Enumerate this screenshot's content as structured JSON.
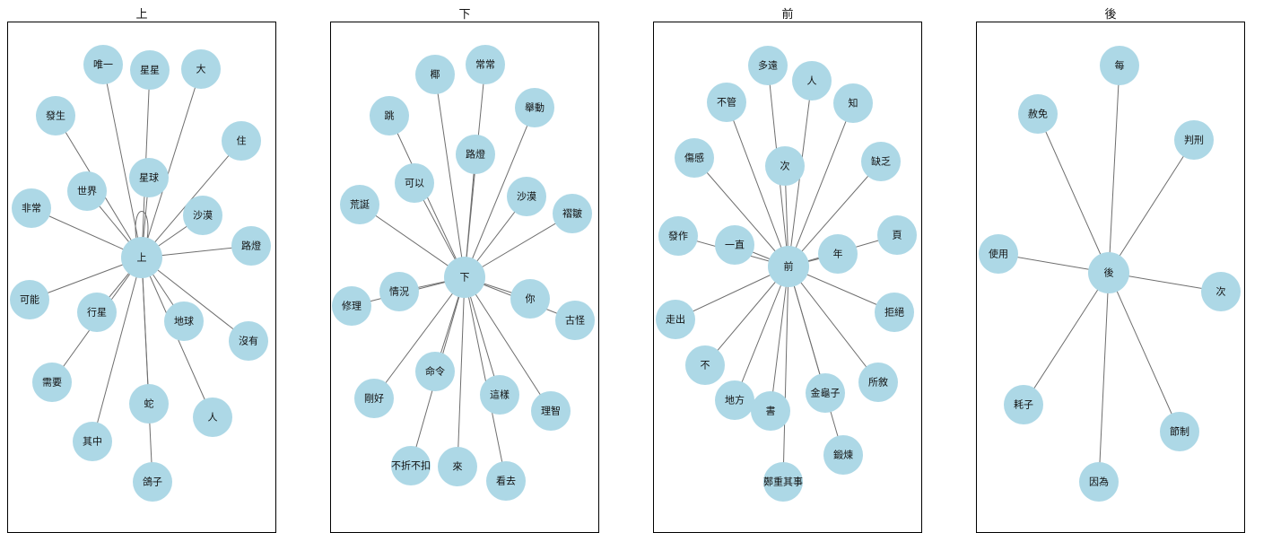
{
  "colors": {
    "node": "#add8e6",
    "edge": "#6e6e6e",
    "frame": "#000000"
  },
  "panels": [
    {
      "title": "上",
      "center": "上",
      "neighbors": [
        "唯一",
        "星星",
        "大",
        "發生",
        "住",
        "星球",
        "世界",
        "非常",
        "沙漠",
        "路燈",
        "可能",
        "行星",
        "地球",
        "沒有",
        "需要",
        "蛇",
        "人",
        "其中",
        "鴿子"
      ],
      "self_loop": true
    },
    {
      "title": "下",
      "center": "下",
      "neighbors": [
        "椰",
        "常常",
        "跳",
        "舉動",
        "路燈",
        "可以",
        "沙漠",
        "荒誕",
        "褶皺",
        "修理",
        "情況",
        "你",
        "古怪",
        "剛好",
        "命令",
        "這樣",
        "理智",
        "不折不扣",
        "來",
        "看去"
      ],
      "self_loop": false
    },
    {
      "title": "前",
      "center": "前",
      "neighbors": [
        "多遠",
        "人",
        "不管",
        "知",
        "傷感",
        "次",
        "缺乏",
        "發作",
        "一直",
        "頁",
        "年",
        "走出",
        "拒絕",
        "不",
        "金龜子",
        "所敘",
        "地方",
        "書",
        "鍛煉",
        "鄭重其事"
      ],
      "self_loop": false
    },
    {
      "title": "後",
      "center": "後",
      "neighbors": [
        "每",
        "赦免",
        "判刑",
        "使用",
        "次",
        "耗子",
        "節制",
        "因為"
      ],
      "self_loop": false
    }
  ],
  "chart_data": [
    {
      "type": "network",
      "title": "上",
      "center": "上",
      "edges": [
        [
          "上",
          "唯一"
        ],
        [
          "上",
          "星星"
        ],
        [
          "上",
          "大"
        ],
        [
          "上",
          "發生"
        ],
        [
          "上",
          "住"
        ],
        [
          "上",
          "星球"
        ],
        [
          "上",
          "世界"
        ],
        [
          "上",
          "非常"
        ],
        [
          "上",
          "沙漠"
        ],
        [
          "上",
          "路燈"
        ],
        [
          "上",
          "可能"
        ],
        [
          "上",
          "行星"
        ],
        [
          "上",
          "地球"
        ],
        [
          "上",
          "沒有"
        ],
        [
          "上",
          "需要"
        ],
        [
          "上",
          "蛇"
        ],
        [
          "上",
          "人"
        ],
        [
          "上",
          "其中"
        ],
        [
          "上",
          "鴿子"
        ],
        [
          "上",
          "上"
        ]
      ]
    },
    {
      "type": "network",
      "title": "下",
      "center": "下",
      "edges": [
        [
          "下",
          "椰"
        ],
        [
          "下",
          "常常"
        ],
        [
          "下",
          "跳"
        ],
        [
          "下",
          "舉動"
        ],
        [
          "下",
          "路燈"
        ],
        [
          "下",
          "可以"
        ],
        [
          "下",
          "沙漠"
        ],
        [
          "下",
          "荒誕"
        ],
        [
          "下",
          "褶皺"
        ],
        [
          "下",
          "修理"
        ],
        [
          "下",
          "情況"
        ],
        [
          "下",
          "你"
        ],
        [
          "下",
          "古怪"
        ],
        [
          "下",
          "剛好"
        ],
        [
          "下",
          "命令"
        ],
        [
          "下",
          "這樣"
        ],
        [
          "下",
          "理智"
        ],
        [
          "下",
          "不折不扣"
        ],
        [
          "下",
          "來"
        ],
        [
          "下",
          "看去"
        ]
      ]
    },
    {
      "type": "network",
      "title": "前",
      "center": "前",
      "edges": [
        [
          "前",
          "多遠"
        ],
        [
          "前",
          "人"
        ],
        [
          "前",
          "不管"
        ],
        [
          "前",
          "知"
        ],
        [
          "前",
          "傷感"
        ],
        [
          "前",
          "次"
        ],
        [
          "前",
          "缺乏"
        ],
        [
          "前",
          "發作"
        ],
        [
          "前",
          "一直"
        ],
        [
          "前",
          "頁"
        ],
        [
          "前",
          "年"
        ],
        [
          "前",
          "走出"
        ],
        [
          "前",
          "拒絕"
        ],
        [
          "前",
          "不"
        ],
        [
          "前",
          "金龜子"
        ],
        [
          "前",
          "所敘"
        ],
        [
          "前",
          "地方"
        ],
        [
          "前",
          "書"
        ],
        [
          "前",
          "鍛煉"
        ],
        [
          "前",
          "鄭重其事"
        ]
      ]
    },
    {
      "type": "network",
      "title": "後",
      "center": "後",
      "edges": [
        [
          "後",
          "每"
        ],
        [
          "後",
          "赦免"
        ],
        [
          "後",
          "判刑"
        ],
        [
          "後",
          "使用"
        ],
        [
          "後",
          "次"
        ],
        [
          "後",
          "耗子"
        ],
        [
          "後",
          "節制"
        ],
        [
          "後",
          "因為"
        ]
      ]
    }
  ]
}
